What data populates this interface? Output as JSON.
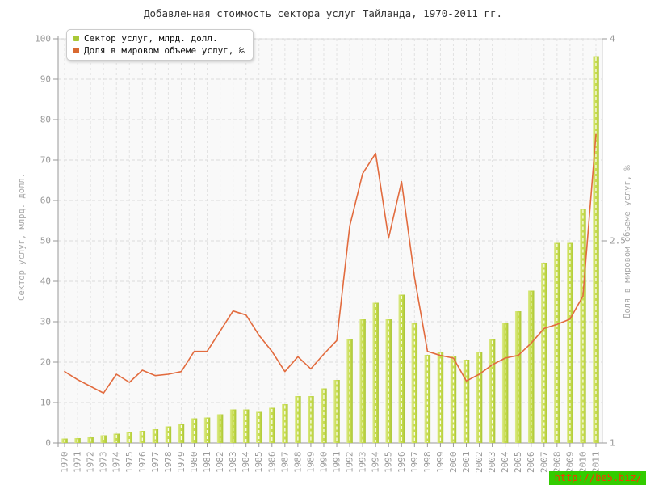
{
  "title": "Добавленная стоимость сектора услуг Тайланда, 1970-2011 гг.",
  "watermark": {
    "text": "http://be5.biz/",
    "bg": "#33cc00",
    "fg": "#ff3300"
  },
  "chart_data": {
    "type": "bar",
    "title": "Добавленная стоимость сектора услуг Тайланда, 1970-2011 гг.",
    "categories": [
      1970,
      1971,
      1972,
      1973,
      1974,
      1975,
      1976,
      1977,
      1978,
      1979,
      1980,
      1981,
      1982,
      1983,
      1984,
      1985,
      1986,
      1987,
      1988,
      1989,
      1990,
      1991,
      1992,
      1993,
      1994,
      1995,
      1996,
      1997,
      1998,
      1999,
      2000,
      2001,
      2002,
      2003,
      2004,
      2005,
      2006,
      2007,
      2008,
      2009,
      2010,
      2011
    ],
    "series": [
      {
        "name": "Сектор услуг, млрд. долл.",
        "type": "bar",
        "axis": "left",
        "color": "#c6dc52",
        "legend_color": "#a9c837",
        "values": [
          1.1,
          1.2,
          1.4,
          1.9,
          2.3,
          2.7,
          3,
          3.4,
          4.1,
          4.7,
          6.1,
          6.3,
          7.1,
          8.3,
          8.3,
          7.7,
          8.7,
          9.6,
          11.6,
          11.6,
          13.5,
          15.6,
          25.6,
          30.6,
          34.7,
          30.6,
          36.7,
          29.6,
          21.8,
          22.6,
          21.6,
          20.6,
          22.6,
          25.6,
          29.6,
          32.6,
          37.7,
          44.6,
          49.5,
          49.5,
          58,
          95.7
        ]
      },
      {
        "name": "Доля в мировом объеме услуг, ‰",
        "type": "line",
        "axis": "right",
        "color": "#e26b3e",
        "legend_color": "#d96a31",
        "values": [
          1.53,
          1.47,
          1.42,
          1.37,
          1.51,
          1.45,
          1.54,
          1.5,
          1.51,
          1.53,
          1.68,
          1.68,
          1.83,
          1.98,
          1.95,
          1.8,
          1.68,
          1.53,
          1.64,
          1.55,
          1.66,
          1.76,
          2.61,
          3,
          3.15,
          2.52,
          2.94,
          2.23,
          1.68,
          1.65,
          1.63,
          1.46,
          1.51,
          1.58,
          1.63,
          1.65,
          1.74,
          1.85,
          1.88,
          1.92,
          2.09,
          3.29
        ]
      }
    ],
    "left_axis": {
      "title": "Сектор услуг, млрд. долл.",
      "min": 0,
      "max": 100,
      "tick_step": 10
    },
    "right_axis": {
      "title": "Доля в мировом объеме услуг, ‰",
      "min": 1,
      "max": 4,
      "ticks": [
        1,
        2.5,
        4
      ]
    },
    "grid": true,
    "legend_position": "top-left"
  }
}
